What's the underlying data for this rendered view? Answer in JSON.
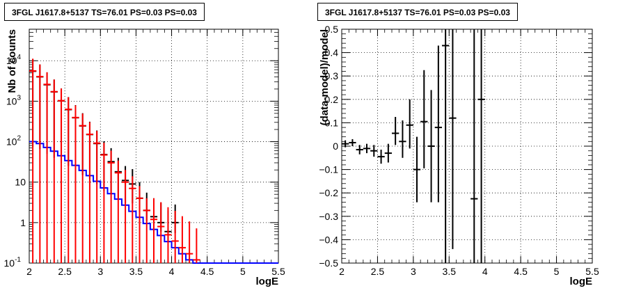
{
  "chart_data": [
    {
      "type": "line",
      "title": "3FGL J1617.8+5137 TS=76.01 PS=0.03 PS=0.03",
      "xlabel": "logE",
      "ylabel": "Nb of counts",
      "xlim": [
        2,
        5.5
      ],
      "ylim": [
        0.1,
        60000
      ],
      "yscale": "log",
      "grid": true,
      "xticks": [
        "2",
        "2.5",
        "3",
        "3.5",
        "4",
        "4.5",
        "5",
        "5.5"
      ],
      "yticks": [
        "10^-1",
        "1",
        "10",
        "10^2",
        "10^3",
        "10^4"
      ],
      "series": [
        {
          "color": "#0000ff",
          "style": "step",
          "x": [
            2.05,
            2.15,
            2.25,
            2.35,
            2.45,
            2.55,
            2.65,
            2.75,
            2.85,
            2.95,
            3.05,
            3.15,
            3.25,
            3.35,
            3.45,
            3.55,
            3.65,
            3.75,
            3.85,
            3.95,
            4.05,
            4.15,
            4.25,
            4.35,
            4.45,
            4.55,
            4.65,
            4.75,
            4.85,
            4.95,
            5.05,
            5.15,
            5.25,
            5.35,
            5.45
          ],
          "y": [
            100,
            90,
            72,
            58,
            45,
            34,
            26,
            19.5,
            14.5,
            10.5,
            7.2,
            5.2,
            3.8,
            2.7,
            1.9,
            1.35,
            0.95,
            0.68,
            0.48,
            0.34,
            0.24,
            0.17,
            0.12,
            0.1,
            0.1,
            0.1,
            0.1,
            0.1,
            0.1,
            0.1,
            0.1,
            0.1,
            0.1,
            0.1,
            0.1
          ]
        },
        {
          "color": "#000000",
          "style": "errorbar",
          "x": [
            2.05,
            2.15,
            2.25,
            2.35,
            2.45,
            2.55,
            2.65,
            2.75,
            2.85,
            2.95,
            3.05,
            3.15,
            3.25,
            3.35,
            3.45,
            3.55,
            3.65,
            3.75,
            3.85,
            3.95,
            4.05
          ],
          "y": [
            5500,
            4000,
            2550,
            1700,
            1020,
            620,
            390,
            245,
            150,
            90,
            48,
            32,
            18,
            11,
            9,
            4,
            2,
            1.4,
            1,
            0.6,
            1
          ],
          "yerr_low": [
            5425,
            3935,
            2500,
            1660,
            990,
            595,
            370,
            230,
            138,
            81,
            42,
            27,
            14,
            8,
            6,
            2.2,
            0.9,
            0.6,
            0.4,
            0.25,
            0.45
          ],
          "yerr_high": [
            5575,
            4065,
            2600,
            1740,
            1050,
            645,
            410,
            260,
            162,
            99,
            54,
            37,
            22,
            14,
            12,
            6,
            3.5,
            2.6,
            2.1,
            1.4,
            1.8
          ]
        },
        {
          "color": "#ff0000",
          "style": "errorbar",
          "x": [
            2.05,
            2.15,
            2.25,
            2.35,
            2.45,
            2.55,
            2.65,
            2.75,
            2.85,
            2.95,
            3.05,
            3.15,
            3.25,
            3.35,
            3.45,
            3.55,
            3.65,
            3.75,
            3.85,
            3.95,
            4.05,
            4.15,
            4.25,
            4.35
          ],
          "y": [
            5600,
            4050,
            2600,
            1720,
            1030,
            630,
            395,
            248,
            152,
            92,
            47,
            30,
            17,
            10,
            7,
            4,
            2,
            1.2,
            0.8,
            0.5,
            0.35,
            0.24,
            0.17,
            0.12
          ],
          "yerr_low": [
            5600,
            4050,
            2600,
            1720,
            1030,
            630,
            395,
            248,
            152,
            92,
            47,
            30,
            17,
            10,
            7,
            4,
            2,
            1.1,
            0.7,
            0.4,
            0.25,
            0.14,
            0.07,
            0.02
          ],
          "yerr_high": [
            5600,
            4050,
            2600,
            1720,
            1030,
            630,
            395,
            248,
            152,
            92,
            47,
            30,
            17,
            10,
            7,
            4,
            2,
            2.8,
            2.4,
            1.9,
            1.6,
            1.2,
            0.9,
            0.6
          ]
        }
      ]
    },
    {
      "type": "scatter",
      "title": "3FGL J1617.8+5137 TS=76.01 PS=0.03 PS=0.03",
      "xlabel": "logE",
      "ylabel": "(data-model)/model",
      "xlim": [
        2,
        5.5
      ],
      "ylim": [
        -0.5,
        0.5
      ],
      "grid": true,
      "xticks": [
        "2",
        "2.5",
        "3",
        "3.5",
        "4",
        "4.5",
        "5",
        "5.5"
      ],
      "yticks": [
        "−0.5",
        "−0.4",
        "−0.3",
        "−0.2",
        "−0.1",
        "0",
        "0.1",
        "0.2",
        "0.3",
        "0.4",
        "0.5"
      ],
      "series": [
        {
          "color": "#000000",
          "x": [
            2.05,
            2.15,
            2.25,
            2.35,
            2.45,
            2.55,
            2.65,
            2.75,
            2.85,
            2.95,
            3.05,
            3.15,
            3.25,
            3.35,
            3.45,
            3.55,
            3.85,
            3.95
          ],
          "y": [
            0.01,
            0.015,
            -0.015,
            -0.01,
            -0.02,
            -0.045,
            -0.03,
            0.055,
            0.02,
            0.09,
            -0.1,
            0.105,
            0,
            0.08,
            0.43,
            0.12,
            -0.225,
            0.2
          ],
          "yerr_low": [
            0.015,
            0.015,
            0.02,
            0.02,
            0.025,
            0.03,
            0.04,
            0.05,
            0.07,
            0.1,
            0.14,
            0.2,
            0.24,
            0.32,
            0.93,
            0.56,
            0.275,
            0.7
          ],
          "yerr_high": [
            0.015,
            0.015,
            0.02,
            0.02,
            0.025,
            0.03,
            0.04,
            0.07,
            0.09,
            0.11,
            0.14,
            0.22,
            0.24,
            0.35,
            0.07,
            0.38,
            0.725,
            0.3
          ]
        }
      ]
    }
  ]
}
